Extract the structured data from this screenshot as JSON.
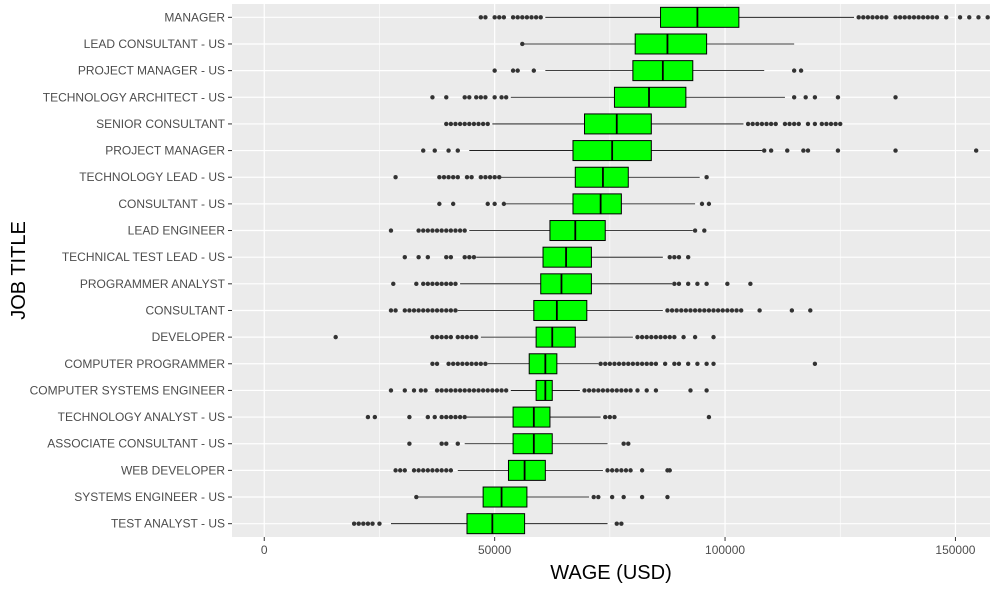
{
  "chart_data": {
    "type": "boxplot",
    "orientation": "horizontal",
    "xlabel": "WAGE (USD)",
    "ylabel": "JOB TITLE",
    "xlim": [
      -7000,
      157500
    ],
    "x_ticks": [
      0,
      50000,
      100000,
      150000
    ],
    "x_tick_labels": [
      "0",
      "50000",
      "100000",
      "150000"
    ],
    "grid": true,
    "box_color": "#00ff00",
    "outline_color": "#000000",
    "outlier_color": "#333333",
    "panel_background": "#ebebeb",
    "grid_color": "#ffffff",
    "categories": [
      {
        "label": "MANAGER",
        "whisker_low": 61000,
        "q1": 86000,
        "median": 94000,
        "q3": 103000,
        "whisker_high": 128000,
        "outliers": [
          47000,
          48000,
          50000,
          51000,
          52000,
          54000,
          55000,
          56000,
          57000,
          58000,
          59000,
          60000,
          129000,
          130000,
          131000,
          132000,
          133000,
          134000,
          135000,
          137000,
          138000,
          139000,
          140000,
          141000,
          142000,
          143000,
          144000,
          145000,
          146000,
          148000,
          151000,
          153000,
          155000,
          157000
        ]
      },
      {
        "label": "LEAD CONSULTANT - US",
        "whisker_low": 56000,
        "q1": 80500,
        "median": 87500,
        "q3": 96000,
        "whisker_high": 115000,
        "outliers": [
          56000
        ]
      },
      {
        "label": "PROJECT MANAGER - US",
        "whisker_low": 61000,
        "q1": 80000,
        "median": 86500,
        "q3": 93000,
        "whisker_high": 108500,
        "outliers": [
          50000,
          54000,
          55000,
          58500,
          115000,
          116500
        ]
      },
      {
        "label": "TECHNOLOGY ARCHITECT - US",
        "whisker_low": 53500,
        "q1": 76000,
        "median": 83500,
        "q3": 91500,
        "whisker_high": 113000,
        "outliers": [
          36500,
          39500,
          43500,
          44500,
          46000,
          47000,
          48000,
          50000,
          51500,
          52500,
          115000,
          117500,
          119500,
          124500,
          137000
        ]
      },
      {
        "label": "SENIOR CONSULTANT",
        "whisker_low": 49500,
        "q1": 69500,
        "median": 76500,
        "q3": 84000,
        "whisker_high": 104000,
        "outliers": [
          39500,
          40500,
          41500,
          42500,
          43500,
          44500,
          45500,
          46500,
          47500,
          48500,
          105000,
          106000,
          107000,
          108000,
          109000,
          110000,
          111000,
          113000,
          114000,
          115000,
          116000,
          118000,
          119500,
          121000,
          122000,
          123000,
          124000,
          125000
        ]
      },
      {
        "label": "PROJECT MANAGER",
        "whisker_low": 44500,
        "q1": 67000,
        "median": 75500,
        "q3": 84000,
        "whisker_high": 108000,
        "outliers": [
          34500,
          37000,
          40000,
          42000,
          108500,
          110000,
          113500,
          117000,
          118000,
          124500,
          137000,
          154500
        ]
      },
      {
        "label": "TECHNOLOGY LEAD - US",
        "whisker_low": 51000,
        "q1": 67500,
        "median": 73500,
        "q3": 79000,
        "whisker_high": 94500,
        "outliers": [
          28500,
          38000,
          39000,
          40000,
          41000,
          42000,
          44000,
          45000,
          47000,
          48000,
          49000,
          50000,
          51000,
          96000
        ]
      },
      {
        "label": "CONSULTANT - US",
        "whisker_low": 52000,
        "q1": 67000,
        "median": 73000,
        "q3": 77500,
        "whisker_high": 93500,
        "outliers": [
          38000,
          41000,
          48500,
          50000,
          52000,
          95000,
          96500
        ]
      },
      {
        "label": "LEAD ENGINEER",
        "whisker_low": 44500,
        "q1": 62000,
        "median": 67500,
        "q3": 74000,
        "whisker_high": 93000,
        "outliers": [
          27500,
          33500,
          34500,
          35500,
          36500,
          37500,
          38500,
          39500,
          40500,
          41500,
          42500,
          43500,
          93500,
          95500
        ]
      },
      {
        "label": "TECHNICAL TEST LEAD - US",
        "whisker_low": 46000,
        "q1": 60500,
        "median": 65500,
        "q3": 71000,
        "whisker_high": 86500,
        "outliers": [
          30500,
          33500,
          35500,
          39500,
          40500,
          43500,
          44500,
          45500,
          88000,
          89000,
          90000,
          92000
        ]
      },
      {
        "label": "PROGRAMMER ANALYST",
        "whisker_low": 42500,
        "q1": 60000,
        "median": 64500,
        "q3": 71000,
        "whisker_high": 88500,
        "outliers": [
          28000,
          33000,
          34500,
          35500,
          36500,
          37500,
          38500,
          39500,
          40500,
          41500,
          89000,
          90000,
          92000,
          94000,
          96000,
          100500,
          105500
        ]
      },
      {
        "label": "CONSULTANT",
        "whisker_low": 42000,
        "q1": 58500,
        "median": 63500,
        "q3": 70000,
        "whisker_high": 86500,
        "outliers": [
          27500,
          28500,
          30500,
          31500,
          32500,
          33500,
          34500,
          35500,
          36500,
          37500,
          38500,
          39500,
          40500,
          41500,
          87500,
          88500,
          89500,
          90500,
          91500,
          92500,
          93500,
          94500,
          95500,
          96500,
          97500,
          98500,
          99500,
          100500,
          101500,
          102500,
          103500,
          107500,
          114500,
          118500
        ]
      },
      {
        "label": "DEVELOPER",
        "whisker_low": 47000,
        "q1": 59000,
        "median": 62500,
        "q3": 67500,
        "whisker_high": 80000,
        "outliers": [
          15500,
          36500,
          37500,
          38500,
          39500,
          40500,
          42000,
          43000,
          44000,
          45000,
          46000,
          81000,
          82000,
          83000,
          84000,
          85000,
          86000,
          87000,
          88000,
          89000,
          91000,
          93500,
          97500
        ]
      },
      {
        "label": "COMPUTER PROGRAMMER",
        "whisker_low": 48500,
        "q1": 57500,
        "median": 61000,
        "q3": 63500,
        "whisker_high": 72500,
        "outliers": [
          36500,
          37500,
          40000,
          41000,
          42000,
          43000,
          44000,
          45000,
          46000,
          47000,
          48000,
          73000,
          74000,
          75000,
          76000,
          77000,
          78000,
          79000,
          80000,
          81000,
          82000,
          83000,
          84000,
          85000,
          87000,
          89000,
          90000,
          92000,
          94000,
          96000,
          97500,
          119500
        ]
      },
      {
        "label": "COMPUTER SYSTEMS ENGINEER",
        "whisker_low": 53500,
        "q1": 59000,
        "median": 61000,
        "q3": 62500,
        "whisker_high": 68500,
        "outliers": [
          27500,
          30500,
          32500,
          34000,
          35000,
          37500,
          38500,
          39500,
          40500,
          41500,
          42500,
          43500,
          44500,
          45500,
          46500,
          47500,
          48500,
          49500,
          50500,
          51500,
          52500,
          69500,
          70500,
          71500,
          72500,
          73500,
          74500,
          75500,
          76500,
          77500,
          78500,
          79500,
          81000,
          83000,
          85000,
          92500,
          96000
        ]
      },
      {
        "label": "TECHNOLOGY ANALYST - US",
        "whisker_low": 44000,
        "q1": 54000,
        "median": 58500,
        "q3": 62000,
        "whisker_high": 73000,
        "outliers": [
          22500,
          24000,
          31500,
          35500,
          37000,
          38500,
          39500,
          40500,
          41500,
          42500,
          43500,
          74000,
          75000,
          76000,
          96500
        ]
      },
      {
        "label": "ASSOCIATE CONSULTANT - US",
        "whisker_low": 43500,
        "q1": 54000,
        "median": 58500,
        "q3": 62500,
        "whisker_high": 74500,
        "outliers": [
          31500,
          38500,
          39500,
          42000,
          78000,
          79000
        ]
      },
      {
        "label": "WEB DEVELOPER",
        "whisker_low": 42000,
        "q1": 53000,
        "median": 56500,
        "q3": 61000,
        "whisker_high": 73500,
        "outliers": [
          28500,
          29500,
          30500,
          32500,
          33500,
          34500,
          35500,
          36500,
          37500,
          38500,
          39500,
          40500,
          74500,
          75500,
          76500,
          77500,
          78500,
          79500,
          82000,
          87500,
          88000
        ]
      },
      {
        "label": "SYSTEMS ENGINEER - US",
        "whisker_low": 33000,
        "q1": 47500,
        "median": 51500,
        "q3": 57000,
        "whisker_high": 70500,
        "outliers": [
          33000,
          71500,
          72500,
          75500,
          78000,
          82000,
          87500
        ]
      },
      {
        "label": "TEST ANALYST - US",
        "whisker_low": 27500,
        "q1": 44000,
        "median": 49500,
        "q3": 56500,
        "whisker_high": 74500,
        "outliers": [
          19500,
          20500,
          21500,
          22500,
          23500,
          25000,
          76500,
          77500
        ]
      }
    ]
  }
}
